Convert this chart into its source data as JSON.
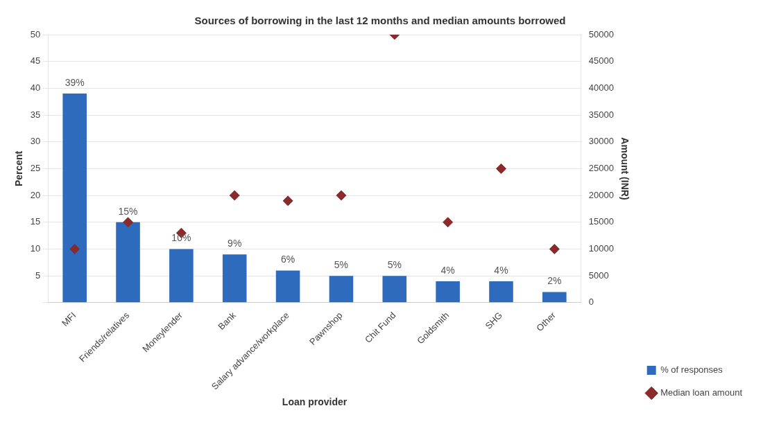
{
  "chart_data": {
    "type": "bar",
    "title": "Sources of borrowing in the last 12 months and median amounts borrowed",
    "xlabel": "Loan provider",
    "ylabel": "Percent",
    "y2label": "Amount (INR)",
    "categories": [
      "MFI",
      "Friends/relatives",
      "Moneylender",
      "Bank",
      "Salary advance/workplace",
      "Pawnshop",
      "Chit Fund",
      "Goldsmith",
      "SHG",
      "Other"
    ],
    "series": [
      {
        "name": "% of responses",
        "color": "#2e6bbd",
        "values": [
          39,
          15,
          10,
          9,
          6,
          5,
          5,
          4,
          4,
          2
        ],
        "value_labels": [
          "39%",
          "15%",
          "10%",
          "9%",
          "6%",
          "5%",
          "5%",
          "4%",
          "4%",
          "2%"
        ]
      },
      {
        "name": "Median loan amount",
        "type": "scatter",
        "axis": "y2",
        "marker": "diamond",
        "color": "#8b2a2a",
        "values": [
          10000,
          15000,
          13000,
          20000,
          19000,
          20000,
          50000,
          15000,
          25000,
          10000
        ]
      }
    ],
    "ylim": [
      0,
      50
    ],
    "yticks": [
      {
        "value": 0,
        "label": null
      },
      5,
      10,
      15,
      20,
      25,
      30,
      35,
      40,
      45,
      50
    ],
    "y2lim": [
      0,
      50000
    ],
    "y2ticks": [
      0,
      5000,
      10000,
      15000,
      20000,
      25000,
      30000,
      35000,
      40000,
      45000,
      50000
    ],
    "grid": "y",
    "legend": "bottom right"
  }
}
